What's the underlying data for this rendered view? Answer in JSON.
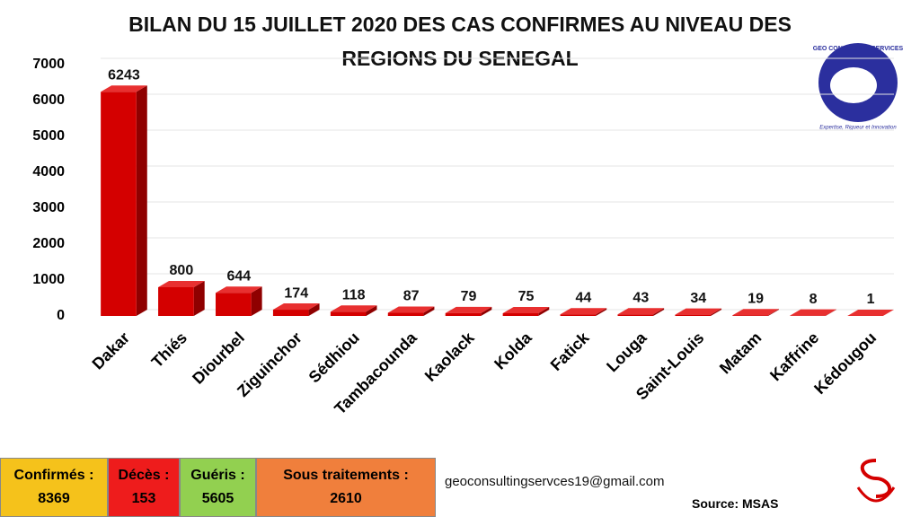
{
  "chart_data": {
    "type": "bar3d",
    "title": "BILAN DU 15 JUILLET 2020 DES CAS CONFIRMES AU NIVEAU DES REGIONS  DU SENEGAL",
    "categories": [
      "Dakar",
      "Thiés",
      "Diourbel",
      "Ziguinchor",
      "Sédhiou",
      "Tambacounda",
      "Kaolack",
      "Kolda",
      "Fatick",
      "Louga",
      "Saint-Louis",
      "Matam",
      "Kaffrine",
      "Kédougou"
    ],
    "values": [
      6243,
      800,
      644,
      174,
      118,
      87,
      79,
      75,
      44,
      43,
      34,
      19,
      8,
      1
    ],
    "color": "#d40000",
    "ylim": [
      0,
      7000
    ],
    "yticks": [
      0,
      1000,
      2000,
      3000,
      4000,
      5000,
      6000,
      7000
    ],
    "grid": true
  },
  "summary": [
    {
      "label": "Confirmés :",
      "value": "8369",
      "color": "#f5c21b"
    },
    {
      "label": "Décès :",
      "value": "153",
      "color": "#ee1c1c"
    },
    {
      "label": "Guéris :",
      "value": "5605",
      "color": "#92d050"
    },
    {
      "label": "Sous traitements :",
      "value": "2610",
      "color": "#f07f3c"
    }
  ],
  "footer": {
    "email": "geoconsultingservces19@gmail.com",
    "source": "Source:  MSAS"
  },
  "logo": {
    "name": "GEO CONSULTING SERVICES",
    "motto": "Expertise, Rigueur et Innovation"
  }
}
